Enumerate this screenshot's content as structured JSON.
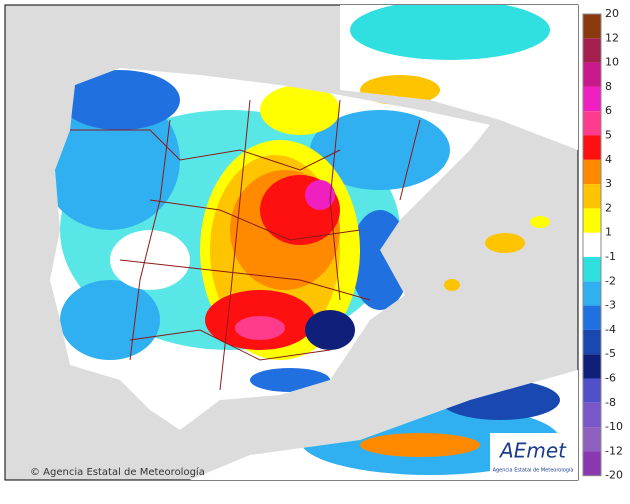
{
  "footer": {
    "credit": "© Agencia Estatal de Meteorología"
  },
  "logo": {
    "name": "AEmet",
    "subtitle": "Agencia Estatal de Meteorología"
  },
  "legend": {
    "ticks": [
      20,
      12,
      10,
      8,
      6,
      5,
      4,
      3,
      2,
      1,
      -1,
      -2,
      -3,
      -4,
      -5,
      -6,
      -8,
      -10,
      -12,
      -20
    ],
    "colors": [
      "#8b3a10",
      "#a3204f",
      "#c8188c",
      "#f020c0",
      "#ff3c8c",
      "#ff1010",
      "#ff8a00",
      "#ffc400",
      "#ffff00",
      "#ffffff",
      "#30e0e0",
      "#30b0f0",
      "#2070e0",
      "#1848b0",
      "#10207a",
      "#5050c8",
      "#7858c8",
      "#9060c0",
      "#8a38b0"
    ]
  }
}
